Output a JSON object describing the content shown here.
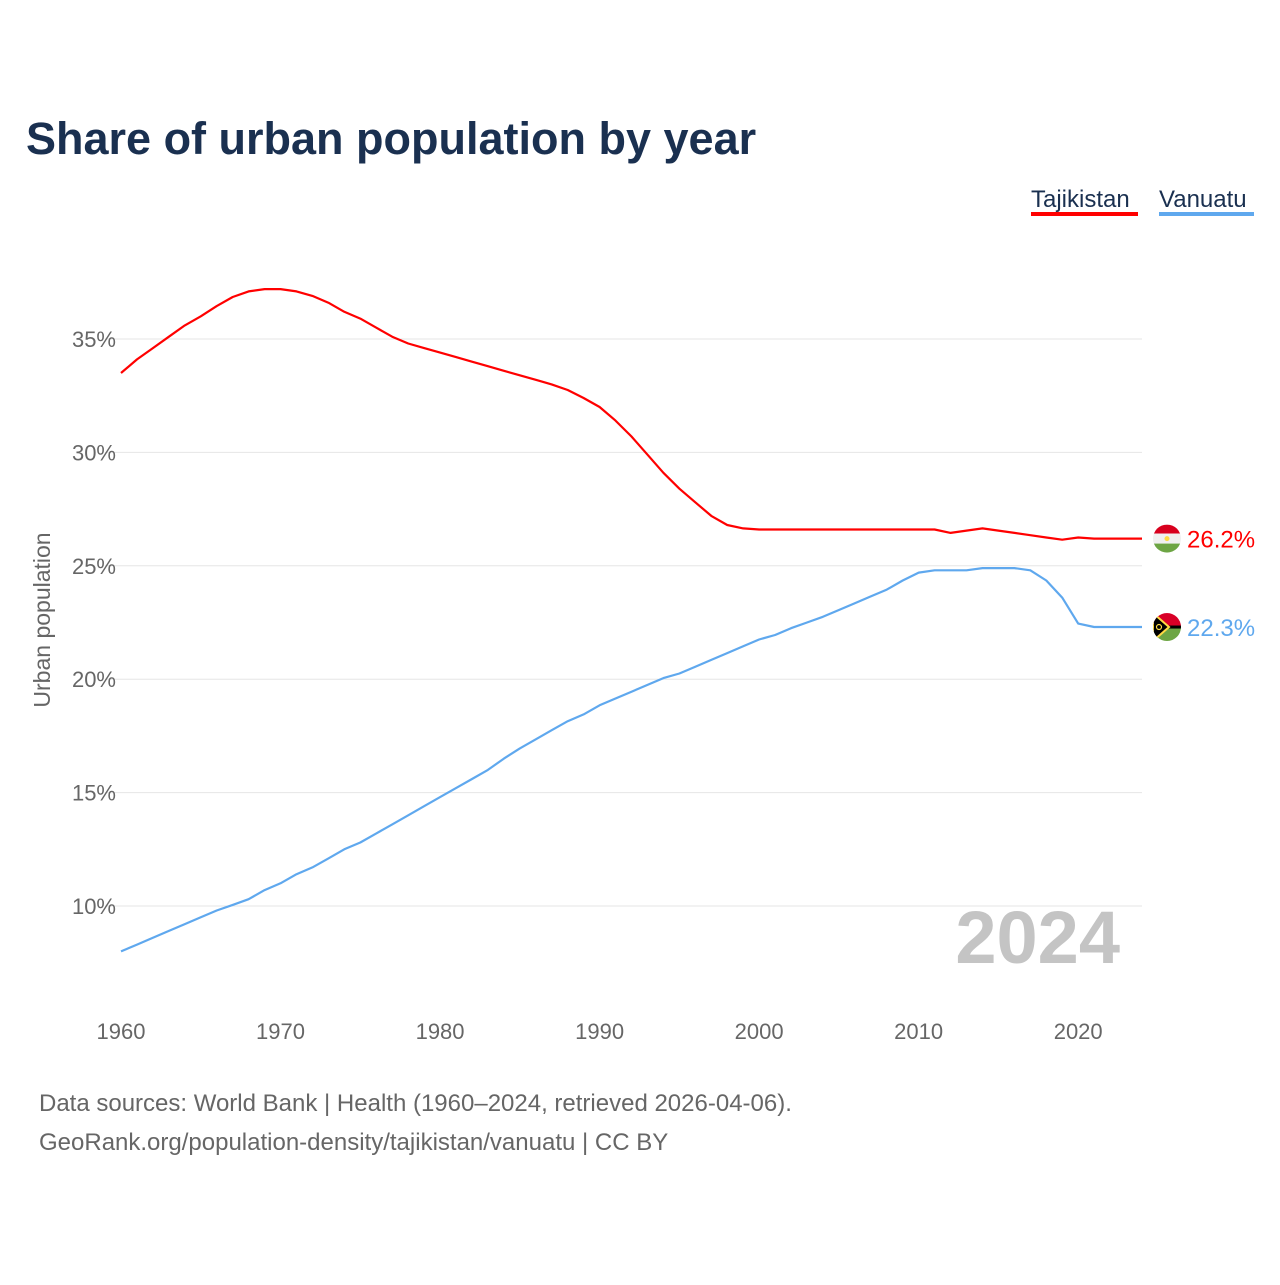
{
  "chart_data": {
    "type": "line",
    "title": "Share of urban population by year",
    "ylabel": "Urban population",
    "xlabel": "",
    "xlim": [
      1960,
      2024
    ],
    "ylim": [
      6,
      38
    ],
    "x_ticks": [
      1960,
      1970,
      1980,
      1990,
      2000,
      2010,
      2020
    ],
    "y_ticks": [
      10,
      15,
      20,
      25,
      30,
      35
    ],
    "y_tick_labels": [
      "10%",
      "15%",
      "20%",
      "25%",
      "30%",
      "35%"
    ],
    "x_tick_labels": [
      "1960",
      "1970",
      "1980",
      "1990",
      "2000",
      "2010",
      "2020"
    ],
    "grid": true,
    "legend_position": "top-right",
    "year_watermark": "2024",
    "x_start": 1960,
    "series": [
      {
        "name": "Tajikistan",
        "color": "#ff0000",
        "end_label": "26.2%",
        "flag": "tajikistan-flag",
        "values": [
          33.5,
          34.1,
          34.6,
          35.1,
          35.6,
          36.0,
          36.45,
          36.85,
          37.1,
          37.2,
          37.2,
          37.1,
          36.9,
          36.6,
          36.2,
          35.9,
          35.5,
          35.1,
          34.8,
          34.6,
          34.4,
          34.2,
          34.0,
          33.8,
          33.6,
          33.4,
          33.2,
          33.0,
          32.75,
          32.4,
          32.0,
          31.4,
          30.7,
          29.9,
          29.1,
          28.4,
          27.8,
          27.2,
          26.8,
          26.65,
          26.6,
          26.6,
          26.6,
          26.6,
          26.6,
          26.6,
          26.6,
          26.6,
          26.6,
          26.6,
          26.6,
          26.6,
          26.45,
          26.55,
          26.65,
          26.55,
          26.45,
          26.35,
          26.25,
          26.15,
          26.25,
          26.2,
          26.2,
          26.2,
          26.2
        ]
      },
      {
        "name": "Vanuatu",
        "color": "#5fa8ee",
        "end_label": "22.3%",
        "flag": "vanuatu-flag",
        "values": [
          8.0,
          8.3,
          8.6,
          8.9,
          9.2,
          9.5,
          9.8,
          10.05,
          10.3,
          10.7,
          11.0,
          11.4,
          11.7,
          12.1,
          12.5,
          12.8,
          13.2,
          13.6,
          14.0,
          14.4,
          14.8,
          15.2,
          15.6,
          16.0,
          16.5,
          16.95,
          17.35,
          17.75,
          18.15,
          18.45,
          18.85,
          19.15,
          19.45,
          19.75,
          20.05,
          20.25,
          20.55,
          20.85,
          21.15,
          21.45,
          21.75,
          21.95,
          22.25,
          22.5,
          22.75,
          23.05,
          23.35,
          23.65,
          23.95,
          24.35,
          24.7,
          24.8,
          24.8,
          24.8,
          24.9,
          24.9,
          24.9,
          24.8,
          24.35,
          23.6,
          22.45,
          22.3,
          22.3,
          22.3,
          22.3
        ]
      }
    ]
  },
  "footer": {
    "line1": "Data sources: World Bank | Health (1960–2024, retrieved 2026-04-06).",
    "line2": "GeoRank.org/population-density/tajikistan/vanuatu | CC BY"
  },
  "colors": {
    "title": "#1a3050",
    "axis_text": "#666666",
    "grid": "#e6e6e6",
    "watermark": "#c4c4c4"
  }
}
